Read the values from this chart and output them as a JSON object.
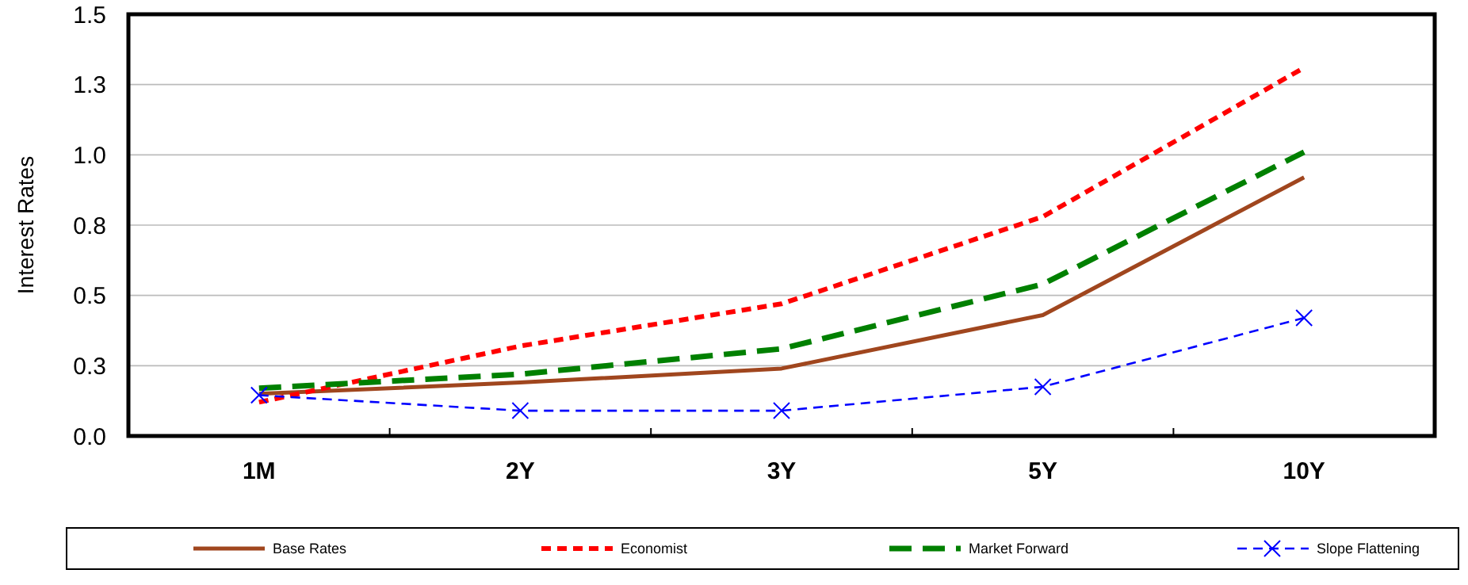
{
  "chart_data": {
    "type": "line",
    "ylabel": "Interest Rates",
    "categories": [
      "1M",
      "2Y",
      "3Y",
      "5Y",
      "10Y"
    ],
    "ylim": [
      0,
      1.5
    ],
    "yticks": [
      {
        "value": 0,
        "label": "0.0"
      },
      {
        "value": 0.25,
        "label": "0.3"
      },
      {
        "value": 0.5,
        "label": "0.5"
      },
      {
        "value": 0.75,
        "label": "0.8"
      },
      {
        "value": 1,
        "label": "1.0"
      },
      {
        "value": 1.25,
        "label": "1.3"
      },
      {
        "value": 1.5,
        "label": "1.5"
      }
    ],
    "grid": "y",
    "legend": "bottom",
    "series": [
      {
        "name": "Base Rates",
        "color": "#a0461e",
        "line_style": "solid",
        "marker": "none",
        "values": [
          0.15,
          0.19,
          0.24,
          0.43,
          0.92
        ]
      },
      {
        "name": "Economist",
        "color": "#ff0000",
        "line_style": "dotted",
        "marker": "none",
        "values": [
          0.12,
          0.32,
          0.47,
          0.78,
          1.31
        ]
      },
      {
        "name": "Market Forward",
        "color": "#008000",
        "line_style": "dashed",
        "marker": "none",
        "values": [
          0.17,
          0.22,
          0.31,
          0.54,
          1.01
        ]
      },
      {
        "name": "Slope Flattening",
        "color": "#0000ff",
        "line_style": "dotted",
        "marker": "cross",
        "values": [
          0.145,
          0.09,
          0.09,
          0.175,
          0.42
        ]
      }
    ]
  }
}
